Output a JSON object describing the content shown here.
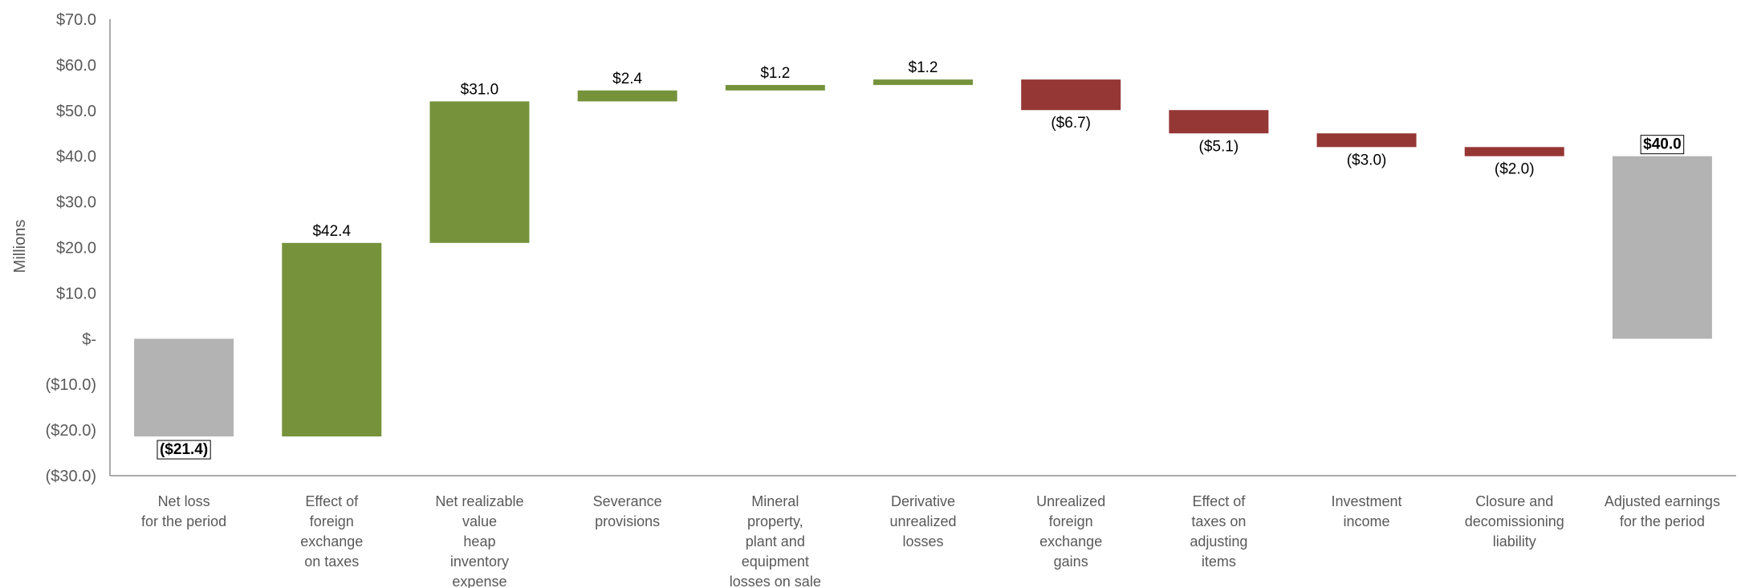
{
  "chart_data": {
    "type": "bar",
    "subtype": "waterfall",
    "title": "",
    "ylabel": "Millions",
    "ylim": [
      -30,
      70
    ],
    "yticks": [
      {
        "value": 70,
        "label": "$70.0"
      },
      {
        "value": 60,
        "label": "$60.0"
      },
      {
        "value": 50,
        "label": "$50.0"
      },
      {
        "value": 40,
        "label": "$40.0"
      },
      {
        "value": 30,
        "label": "$30.0"
      },
      {
        "value": 20,
        "label": "$20.0"
      },
      {
        "value": 10,
        "label": "$10.0"
      },
      {
        "value": 0,
        "label": "$-"
      },
      {
        "value": -10,
        "label": "($10.0)"
      },
      {
        "value": -20,
        "label": "($20.0)"
      },
      {
        "value": -30,
        "label": "($30.0)"
      }
    ],
    "grid": false,
    "colors": {
      "total": "#b3b3b3",
      "increase": "#76933c",
      "decrease": "#953735"
    },
    "categories": [
      {
        "lines": [
          "Net loss",
          "for the period"
        ],
        "value": -21.4,
        "kind": "total",
        "label": "($21.4)",
        "boxed": true
      },
      {
        "lines": [
          "Effect of",
          "foreign",
          "exchange",
          "on taxes"
        ],
        "value": 42.4,
        "kind": "increase",
        "label": "$42.4",
        "boxed": false
      },
      {
        "lines": [
          "Net realizable",
          "value",
          "heap",
          "inventory",
          "expense"
        ],
        "value": 31.0,
        "kind": "increase",
        "label": "$31.0",
        "boxed": false
      },
      {
        "lines": [
          "Severance",
          "provisions"
        ],
        "value": 2.4,
        "kind": "increase",
        "label": "$2.4",
        "boxed": false
      },
      {
        "lines": [
          "Mineral",
          "property,",
          "plant and",
          "equipment",
          "losses on sale"
        ],
        "value": 1.2,
        "kind": "increase",
        "label": "$1.2",
        "boxed": false
      },
      {
        "lines": [
          "Derivative",
          "unrealized",
          "losses"
        ],
        "value": 1.2,
        "kind": "increase",
        "label": "$1.2",
        "boxed": false
      },
      {
        "lines": [
          "Unrealized",
          "foreign",
          "exchange",
          "gains"
        ],
        "value": -6.7,
        "kind": "decrease",
        "label": "($6.7)",
        "boxed": false
      },
      {
        "lines": [
          "Effect of",
          "taxes on",
          "adjusting",
          "items"
        ],
        "value": -5.1,
        "kind": "decrease",
        "label": "($5.1)",
        "boxed": false
      },
      {
        "lines": [
          "Investment",
          "income"
        ],
        "value": -3.0,
        "kind": "decrease",
        "label": "($3.0)",
        "boxed": false
      },
      {
        "lines": [
          "Closure and",
          "decomissioning",
          "liability"
        ],
        "value": -2.0,
        "kind": "decrease",
        "label": "($2.0)",
        "boxed": false
      },
      {
        "lines": [
          "Adjusted earnings",
          "for the period"
        ],
        "value": 40.0,
        "kind": "total",
        "label": "$40.0",
        "boxed": true
      }
    ]
  }
}
